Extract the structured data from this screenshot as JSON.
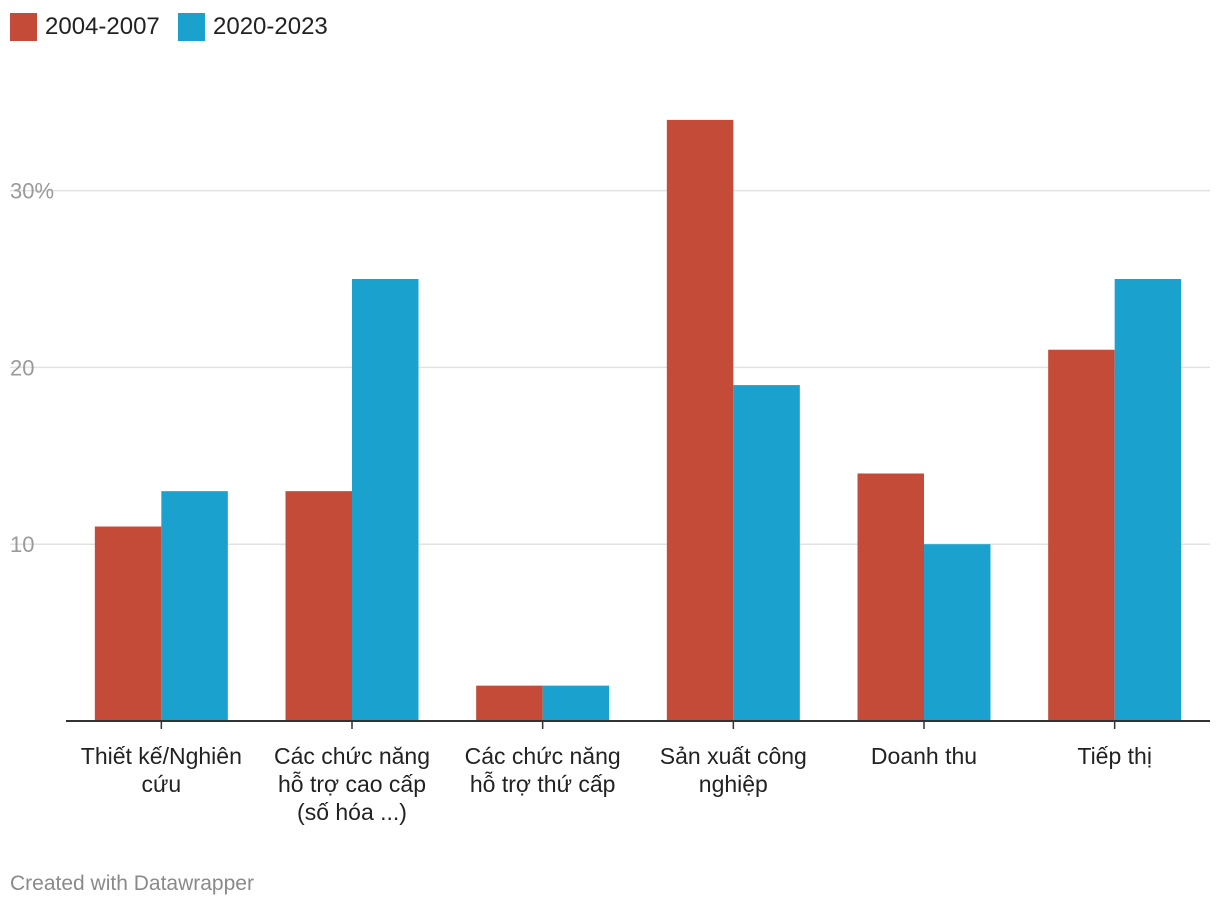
{
  "chart_data": {
    "type": "bar",
    "title": "",
    "xlabel": "",
    "ylabel": "",
    "categories": [
      [
        "Thiết kế/Nghiên",
        "cứu"
      ],
      [
        "Các chức năng",
        "hỗ trợ cao cấp",
        "(số hóa ...)"
      ],
      [
        "Các chức năng",
        "hỗ trợ thứ cấp"
      ],
      [
        "Sản xuất công",
        "nghiệp"
      ],
      [
        "Doanh thu"
      ],
      [
        "Tiếp thị"
      ]
    ],
    "series": [
      {
        "name": "2004-2007",
        "color": "#c44b38",
        "values": [
          11,
          13,
          2,
          34,
          14,
          21
        ]
      },
      {
        "name": "2020-2023",
        "color": "#1aa1ce",
        "values": [
          13,
          25,
          2,
          19,
          10,
          25
        ]
      }
    ],
    "ylim": [
      0,
      34
    ],
    "yticks": [
      {
        "value": 10,
        "label": "10"
      },
      {
        "value": 20,
        "label": "20"
      },
      {
        "value": 30,
        "label": "30%"
      }
    ],
    "grid": true,
    "legend_position": "top-left"
  },
  "footer": {
    "credit": "Created with Datawrapper"
  }
}
